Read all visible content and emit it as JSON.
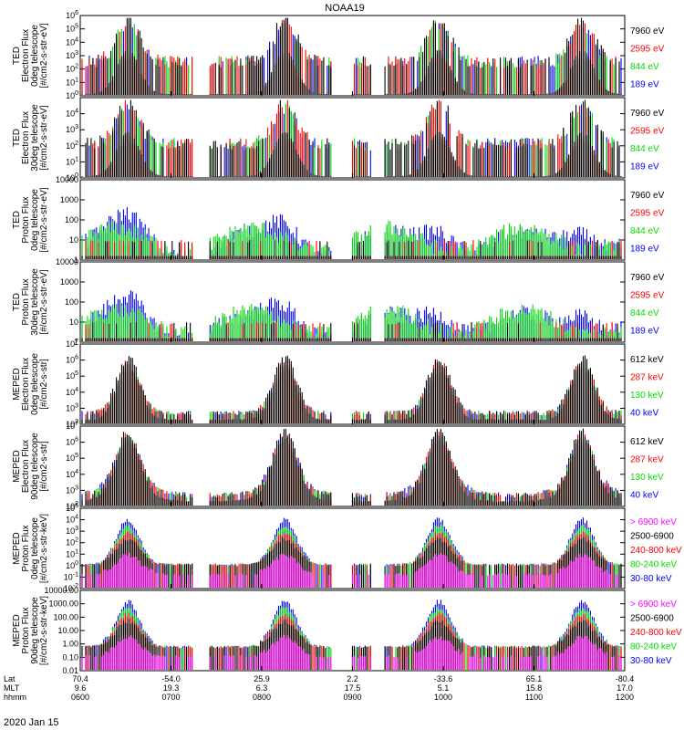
{
  "chart_data": {
    "type": "line",
    "title": "NOAA19",
    "date": "2020 Jan 15",
    "x_axis": {
      "row_labels": [
        "Lat",
        "MLT",
        "hhmm"
      ],
      "ticks": [
        {
          "lat": "70.4",
          "mlt": "9.6",
          "hhmm": "0600"
        },
        {
          "lat": "-54.0",
          "mlt": "19.3",
          "hhmm": "0700"
        },
        {
          "lat": "25.9",
          "mlt": "6.3",
          "hhmm": "0800"
        },
        {
          "lat": "2.2",
          "mlt": "17.5",
          "hhmm": "0900"
        },
        {
          "lat": "-33.6",
          "mlt": "5.1",
          "hhmm": "1000"
        },
        {
          "lat": "65.1",
          "mlt": "15.8",
          "hhmm": "1100"
        },
        {
          "lat": "-80.4",
          "mlt": "17.0",
          "hhmm": "1200"
        }
      ]
    },
    "panels": [
      {
        "ylabel": [
          "TED",
          "Electron Flux",
          "0deg telescope",
          "[#/cm2-s-str-eV]"
        ],
        "yscale": "log",
        "ylim": [
          1,
          1000000
        ],
        "yticks": [
          {
            "v": 1,
            "label": "10^0"
          },
          {
            "v": 10,
            "label": "10^1"
          },
          {
            "v": 100,
            "label": "10^2"
          },
          {
            "v": 1000,
            "label": "10^3"
          },
          {
            "v": 10000,
            "label": "10^4"
          },
          {
            "v": 100000,
            "label": "10^5"
          },
          {
            "v": 1000000,
            "label": "10^6"
          }
        ],
        "kind": "ted_e0",
        "series": [
          {
            "name": "7960 eV",
            "color": "#000000"
          },
          {
            "name": "2595 eV",
            "color": "#ff0000"
          },
          {
            "name": "844 eV",
            "color": "#00dd00"
          },
          {
            "name": "189 eV",
            "color": "#0000ff"
          }
        ]
      },
      {
        "ylabel": [
          "TED",
          "Electron Flux",
          "30deg telescope",
          "[#/cm2-s-str-eV]"
        ],
        "yscale": "log",
        "ylim": [
          1,
          100000
        ],
        "yticks": [
          {
            "v": 1,
            "label": "10^0"
          },
          {
            "v": 10,
            "label": "10^1"
          },
          {
            "v": 100,
            "label": "10^2"
          },
          {
            "v": 1000,
            "label": "10^3"
          },
          {
            "v": 10000,
            "label": "10^4"
          }
        ],
        "kind": "ted_e30",
        "series": [
          {
            "name": "7960 eV",
            "color": "#000000"
          },
          {
            "name": "2595 eV",
            "color": "#ff0000"
          },
          {
            "name": "844 eV",
            "color": "#00dd00"
          },
          {
            "name": "189 eV",
            "color": "#0000ff"
          }
        ]
      },
      {
        "ylabel": [
          "TED",
          "Proton Flux",
          "0deg telescope",
          "[#/cm2-s-str-eV]"
        ],
        "yscale": "log",
        "ylim": [
          1,
          10000
        ],
        "yticks": [
          {
            "v": 1,
            "label": "1"
          },
          {
            "v": 10,
            "label": "10"
          },
          {
            "v": 100,
            "label": "100"
          },
          {
            "v": 1000,
            "label": "1000"
          },
          {
            "v": 10000,
            "label": "10000"
          }
        ],
        "kind": "ted_p0",
        "series": [
          {
            "name": "7960 eV",
            "color": "#000000"
          },
          {
            "name": "2595 eV",
            "color": "#ff0000"
          },
          {
            "name": "844 eV",
            "color": "#00dd00"
          },
          {
            "name": "189 eV",
            "color": "#0000ff"
          }
        ]
      },
      {
        "ylabel": [
          "TED",
          "Proton Flux",
          "30deg telescope",
          "[#/cm2-s-str-eV]"
        ],
        "yscale": "log",
        "ylim": [
          1,
          10000
        ],
        "yticks": [
          {
            "v": 1,
            "label": "1"
          },
          {
            "v": 10,
            "label": "10"
          },
          {
            "v": 100,
            "label": "100"
          },
          {
            "v": 1000,
            "label": "1000"
          },
          {
            "v": 10000,
            "label": "10000"
          }
        ],
        "kind": "ted_p30",
        "series": [
          {
            "name": "7960 eV",
            "color": "#000000"
          },
          {
            "name": "2595 eV",
            "color": "#ff0000"
          },
          {
            "name": "844 eV",
            "color": "#00dd00"
          },
          {
            "name": "189 eV",
            "color": "#0000ff"
          }
        ]
      },
      {
        "ylabel": [
          "MEPED",
          "Electron Flux",
          "0deg telescope",
          "[#/cm2-s-str]"
        ],
        "yscale": "log",
        "ylim": [
          100,
          10000000
        ],
        "yticks": [
          {
            "v": 100,
            "label": "10^2"
          },
          {
            "v": 1000,
            "label": "10^3"
          },
          {
            "v": 10000,
            "label": "10^4"
          },
          {
            "v": 100000,
            "label": "10^5"
          },
          {
            "v": 1000000,
            "label": "10^6"
          },
          {
            "v": 10000000,
            "label": "10^7"
          }
        ],
        "kind": "meped_e0",
        "series": [
          {
            "name": "612 keV",
            "color": "#000000"
          },
          {
            "name": "287 keV",
            "color": "#ff0000"
          },
          {
            "name": "130 keV",
            "color": "#00dd00"
          },
          {
            "name": "40 keV",
            "color": "#0000ff"
          }
        ]
      },
      {
        "ylabel": [
          "MEPED",
          "Electron Flux",
          "90deg telescope",
          "[#/cm2-s-str]"
        ],
        "yscale": "log",
        "ylim": [
          100,
          10000000
        ],
        "yticks": [
          {
            "v": 100,
            "label": "10^2"
          },
          {
            "v": 1000,
            "label": "10^3"
          },
          {
            "v": 10000,
            "label": "10^4"
          },
          {
            "v": 100000,
            "label": "10^5"
          },
          {
            "v": 1000000,
            "label": "10^6"
          },
          {
            "v": 10000000,
            "label": "10^7"
          }
        ],
        "kind": "meped_e90",
        "series": [
          {
            "name": "612 keV",
            "color": "#000000"
          },
          {
            "name": "287 keV",
            "color": "#ff0000"
          },
          {
            "name": "130 keV",
            "color": "#00dd00"
          },
          {
            "name": "40 keV",
            "color": "#0000ff"
          }
        ]
      },
      {
        "ylabel": [
          "MEPED",
          "Proton Flux",
          "0deg telescope",
          "[#/cm2-s-str-keV]"
        ],
        "yscale": "log",
        "ylim": [
          0.01,
          100000
        ],
        "yticks": [
          {
            "v": 0.01,
            "label": "10^-2"
          },
          {
            "v": 0.1,
            "label": "10^-1"
          },
          {
            "v": 1,
            "label": "10^0"
          },
          {
            "v": 10,
            "label": "10^1"
          },
          {
            "v": 100,
            "label": "10^2"
          },
          {
            "v": 1000,
            "label": "10^3"
          },
          {
            "v": 10000,
            "label": "10^4"
          },
          {
            "v": 100000,
            "label": "10^5"
          }
        ],
        "kind": "meped_p0",
        "series": [
          {
            "name": "> 6900 keV",
            "color": "#ff00ff"
          },
          {
            "name": "2500-6900",
            "color": "#000000"
          },
          {
            "name": "240-800 keV",
            "color": "#ff0000"
          },
          {
            "name": "80-240 keV",
            "color": "#00dd00"
          },
          {
            "name": "30-80 keV",
            "color": "#0000ff"
          }
        ]
      },
      {
        "ylabel": [
          "MEPED",
          "Proton Flux",
          "90deg telescope",
          "[#/cm2-s-str-keV]"
        ],
        "yscale": "log",
        "ylim": [
          0.01,
          10000
        ],
        "yticks": [
          {
            "v": 0.01,
            "label": "0.01"
          },
          {
            "v": 0.1,
            "label": "0.10"
          },
          {
            "v": 1,
            "label": "1.00"
          },
          {
            "v": 10,
            "label": "10.00"
          },
          {
            "v": 100,
            "label": "100.00"
          },
          {
            "v": 1000,
            "label": "1000.00"
          },
          {
            "v": 10000,
            "label": "10000.00"
          }
        ],
        "kind": "meped_p90",
        "series": [
          {
            "name": "> 6900 keV",
            "color": "#ff00ff"
          },
          {
            "name": "2500-6900",
            "color": "#000000"
          },
          {
            "name": "240-800 keV",
            "color": "#ff0000"
          },
          {
            "name": "80-240 keV",
            "color": "#00dd00"
          },
          {
            "name": "30-80 keV",
            "color": "#0000ff"
          }
        ]
      }
    ]
  }
}
